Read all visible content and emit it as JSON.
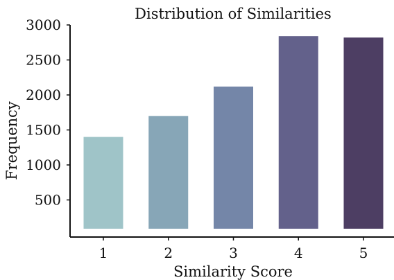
{
  "chart_data": {
    "type": "bar",
    "title": "Distribution of Similarities",
    "xlabel": "Similarity Score",
    "ylabel": "Frequency",
    "categories": [
      "1",
      "2",
      "3",
      "4",
      "5"
    ],
    "values": [
      1400,
      1700,
      2120,
      2840,
      2820
    ],
    "ylim": [
      -30,
      3000
    ],
    "yticks": [
      500,
      1000,
      1500,
      2000,
      2500,
      3000
    ],
    "bar_colors": [
      "#9fc4c8",
      "#87a6b7",
      "#7486a8",
      "#63618b",
      "#4d3e63"
    ],
    "grid": false,
    "legend": "none"
  }
}
